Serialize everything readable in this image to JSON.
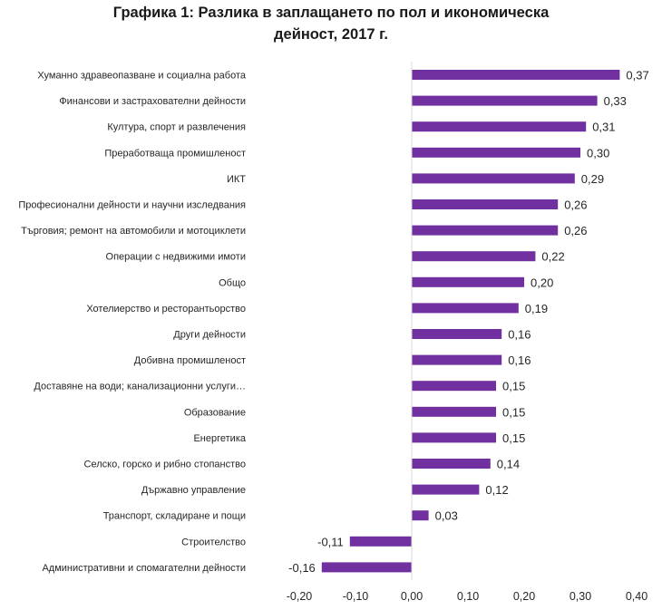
{
  "chart_data": {
    "type": "bar",
    "orientation": "horizontal",
    "title_lines": [
      "Графика 1: Разлика в заплащането по пол и икономическа",
      "дейност, 2017 г."
    ],
    "categories": [
      "Хуманно здравеопазване и социална работа",
      "Финансови и застрахователни дейности",
      "Култура, спорт и развлечения",
      "Преработваща промишленост",
      "ИКТ",
      "Професионални дейности и научни изследвания",
      "Търговия; ремонт на автомобили и мотоциклети",
      "Операции с недвижими имоти",
      "Общо",
      "Хотелиерство и ресторантьорство",
      "Други дейности",
      "Добивна промишленост",
      "Доставяне на води; канализационни услуги…",
      "Образование",
      "Енергетика",
      "Селско, горско и рибно стопанство",
      "Държавно управление",
      "Транспорт, складиране и пощи",
      "Строителство",
      "Административни и спомагателни дейности"
    ],
    "values": [
      0.37,
      0.33,
      0.31,
      0.3,
      0.29,
      0.26,
      0.26,
      0.22,
      0.2,
      0.19,
      0.16,
      0.16,
      0.15,
      0.15,
      0.15,
      0.14,
      0.12,
      0.03,
      -0.11,
      -0.16
    ],
    "value_labels": [
      "0,37",
      "0,33",
      "0,31",
      "0,30",
      "0,29",
      "0,26",
      "0,26",
      "0,22",
      "0,20",
      "0,19",
      "0,16",
      "0,16",
      "0,15",
      "0,15",
      "0,15",
      "0,14",
      "0,12",
      "0,03",
      "-0,11",
      "-0,16"
    ],
    "xlim": [
      -0.2,
      0.4
    ],
    "x_ticks": [
      -0.2,
      -0.1,
      0.0,
      0.1,
      0.2,
      0.3,
      0.4
    ],
    "x_tick_labels": [
      "-0,20",
      "-0,10",
      "0,00",
      "0,10",
      "0,20",
      "0,30",
      "0,40"
    ],
    "grid": false,
    "legend": "none",
    "bar_color": "#7030a0",
    "axis_color": "#d9d9d9",
    "text_color": "#262626"
  }
}
